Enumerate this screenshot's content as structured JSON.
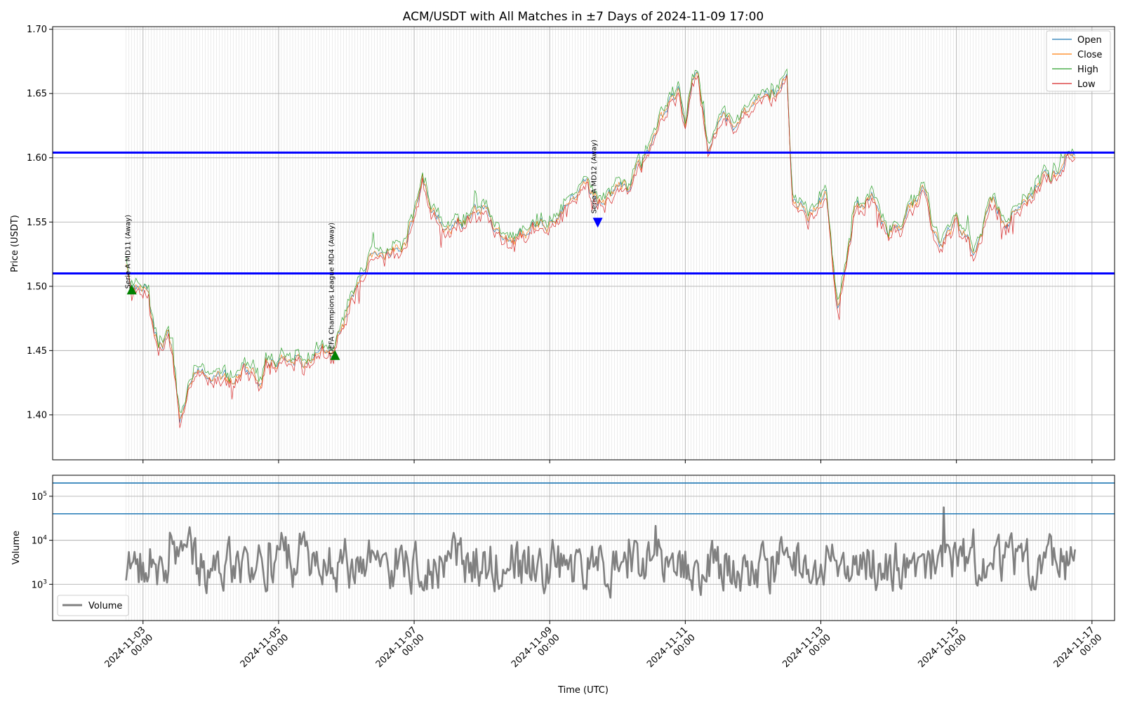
{
  "chart_data": [
    {
      "type": "line",
      "title": "ACM/USDT with All Matches in ±7 Days of 2024-11-09 17:00",
      "xlabel": "",
      "ylabel": "Price (USDT)",
      "ylim": [
        1.365,
        1.702
      ],
      "y_ticks": [
        "1.40",
        "1.45",
        "1.50",
        "1.55",
        "1.60",
        "1.65",
        "1.70"
      ],
      "grid": true,
      "legend_position": "top-right",
      "series": [
        {
          "name": "Open",
          "color": "#1f77b4"
        },
        {
          "name": "Close",
          "color": "#ff7f0e"
        },
        {
          "name": "High",
          "color": "#2ca02c"
        },
        {
          "name": "Low",
          "color": "#d62728"
        }
      ],
      "price_path": {
        "x": [
          "2024-11-02 18:00",
          "2024-11-02 20:00",
          "2024-11-02 23:00",
          "2024-11-03 02:00",
          "2024-11-03 04:00",
          "2024-11-03 07:00",
          "2024-11-03 09:00",
          "2024-11-03 11:00",
          "2024-11-03 13:00",
          "2024-11-03 16:00",
          "2024-11-03 20:00",
          "2024-11-04 02:00",
          "2024-11-04 08:00",
          "2024-11-04 12:00",
          "2024-11-04 17:00",
          "2024-11-04 20:00",
          "2024-11-05 01:00",
          "2024-11-05 06:00",
          "2024-11-05 10:00",
          "2024-11-05 15:00",
          "2024-11-05 20:00",
          "2024-11-06 02:00",
          "2024-11-06 06:00",
          "2024-11-06 10:00",
          "2024-11-06 14:00",
          "2024-11-06 20:00",
          "2024-11-07 00:00",
          "2024-11-07 03:00",
          "2024-11-07 08:00",
          "2024-11-07 13:00",
          "2024-11-07 18:00",
          "2024-11-08 00:00",
          "2024-11-08 06:00",
          "2024-11-08 12:00",
          "2024-11-08 18:00",
          "2024-11-09 00:00",
          "2024-11-09 06:00",
          "2024-11-09 12:00",
          "2024-11-09 17:00",
          "2024-11-09 22:00",
          "2024-11-10 04:00",
          "2024-11-10 08:00",
          "2024-11-10 13:00",
          "2024-11-10 18:00",
          "2024-11-10 22:00",
          "2024-11-11 00:00",
          "2024-11-11 04:00",
          "2024-11-11 08:00",
          "2024-11-11 13:00",
          "2024-11-11 18:00",
          "2024-11-12 00:00",
          "2024-11-12 06:00",
          "2024-11-12 12:00",
          "2024-11-12 14:00",
          "2024-11-12 20:00",
          "2024-11-13 02:00",
          "2024-11-13 06:00",
          "2024-11-13 12:00",
          "2024-11-13 18:00",
          "2024-11-14 00:00",
          "2024-11-14 06:00",
          "2024-11-14 12:00",
          "2024-11-14 18:00",
          "2024-11-15 00:00",
          "2024-11-15 06:00",
          "2024-11-15 12:00",
          "2024-11-15 18:00",
          "2024-11-16 00:00",
          "2024-11-16 06:00",
          "2024-11-16 12:00",
          "2024-11-16 15:00",
          "2024-11-16 18:00"
        ],
        "y": [
          1.515,
          1.498,
          1.505,
          1.498,
          1.46,
          1.455,
          1.465,
          1.44,
          1.39,
          1.42,
          1.43,
          1.43,
          1.425,
          1.44,
          1.425,
          1.44,
          1.445,
          1.45,
          1.44,
          1.45,
          1.455,
          1.49,
          1.515,
          1.525,
          1.525,
          1.53,
          1.555,
          1.585,
          1.55,
          1.545,
          1.55,
          1.56,
          1.54,
          1.535,
          1.545,
          1.55,
          1.56,
          1.58,
          1.565,
          1.575,
          1.58,
          1.59,
          1.62,
          1.64,
          1.655,
          1.625,
          1.67,
          1.61,
          1.635,
          1.625,
          1.64,
          1.645,
          1.66,
          1.565,
          1.555,
          1.575,
          1.485,
          1.56,
          1.57,
          1.54,
          1.555,
          1.575,
          1.525,
          1.55,
          1.525,
          1.57,
          1.55,
          1.57,
          1.58,
          1.59,
          1.61,
          1.6
        ]
      },
      "hlines": [
        1.604,
        1.51
      ],
      "annotations": [
        {
          "label": "Serie A MD11 (Away)",
          "x": "2024-11-02 20:00",
          "y": 1.497,
          "marker": "up",
          "color": "#008000"
        },
        {
          "label": "UEFA Champions League MD4 (Away)",
          "x": "2024-11-05 20:00",
          "y": 1.446,
          "marker": "up",
          "color": "#008000"
        },
        {
          "label": "Serie A MD12 (Away)",
          "x": "2024-11-09 17:00",
          "y": 1.55,
          "marker": "down",
          "color": "#0000ff"
        }
      ]
    },
    {
      "type": "line",
      "xlabel": "Time (UTC)",
      "ylabel": "Volume",
      "yscale": "log",
      "ylim": [
        150,
        300000
      ],
      "y_ticks": [
        {
          "base": "10",
          "exp": "3"
        },
        {
          "base": "10",
          "exp": "4"
        },
        {
          "base": "10",
          "exp": "5"
        }
      ],
      "grid": true,
      "legend_position": "bottom-left",
      "series": [
        {
          "name": "Volume",
          "color": "#808080"
        }
      ],
      "hlines": [
        200000,
        40000
      ],
      "x_ticks": [
        {
          "date": "2024-11-03",
          "time": "00:00"
        },
        {
          "date": "2024-11-05",
          "time": "00:00"
        },
        {
          "date": "2024-11-07",
          "time": "00:00"
        },
        {
          "date": "2024-11-09",
          "time": "00:00"
        },
        {
          "date": "2024-11-11",
          "time": "00:00"
        },
        {
          "date": "2024-11-13",
          "time": "00:00"
        },
        {
          "date": "2024-11-15",
          "time": "00:00"
        },
        {
          "date": "2024-11-17",
          "time": "00:00"
        }
      ],
      "x_range": [
        "2024-11-01 16:00",
        "2024-11-17 08:00"
      ],
      "data_range": [
        "2024-11-02 18:00",
        "2024-11-16 18:00"
      ],
      "volume_typical_range": [
        500,
        60000
      ]
    }
  ]
}
